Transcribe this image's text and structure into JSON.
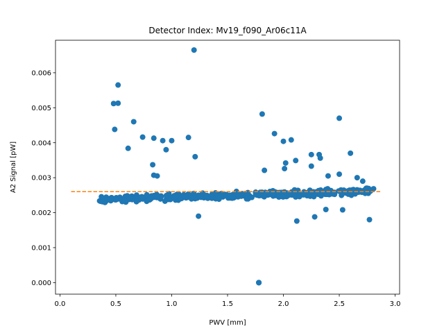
{
  "chart_data": {
    "type": "scatter",
    "title": "Detector Index: Mv19_f090_Ar06c11A",
    "xlabel": "PWV [mm]",
    "ylabel": "A2 Signal [pW]",
    "xlim": [
      -0.04,
      3.04
    ],
    "ylim": [
      -0.00033,
      0.00693
    ],
    "xticks": [
      0.0,
      0.5,
      1.0,
      1.5,
      2.0,
      2.5,
      3.0
    ],
    "xtick_labels": [
      "0.0",
      "0.5",
      "1.0",
      "1.5",
      "2.0",
      "2.5",
      "3.0"
    ],
    "yticks": [
      0.0,
      0.001,
      0.002,
      0.003,
      0.004,
      0.005,
      0.006
    ],
    "ytick_labels": [
      "0.000",
      "0.001",
      "0.002",
      "0.003",
      "0.004",
      "0.005",
      "0.006"
    ],
    "grid": false,
    "colors": {
      "points": "#1f77b4",
      "fit_line": "#ff7f0e"
    },
    "fit_line": {
      "x": [
        0.1,
        2.88
      ],
      "y": [
        0.0026,
        0.0026
      ],
      "style": "dashed"
    },
    "outliers": [
      [
        1.2,
        0.00665
      ],
      [
        0.52,
        0.00565
      ],
      [
        0.48,
        0.00512
      ],
      [
        0.52,
        0.00513
      ],
      [
        0.49,
        0.00438
      ],
      [
        0.66,
        0.0046
      ],
      [
        0.74,
        0.00416
      ],
      [
        0.84,
        0.00413
      ],
      [
        0.92,
        0.00406
      ],
      [
        1.0,
        0.00406
      ],
      [
        1.15,
        0.00415
      ],
      [
        1.21,
        0.0036
      ],
      [
        0.61,
        0.00384
      ],
      [
        0.95,
        0.0038
      ],
      [
        0.83,
        0.00337
      ],
      [
        0.84,
        0.00307
      ],
      [
        0.87,
        0.00305
      ],
      [
        1.24,
        0.0019
      ],
      [
        1.81,
        0.00482
      ],
      [
        1.83,
        0.00321
      ],
      [
        1.92,
        0.00426
      ],
      [
        2.0,
        0.00404
      ],
      [
        2.07,
        0.00408
      ],
      [
        2.02,
        0.00342
      ],
      [
        2.01,
        0.00326
      ],
      [
        2.11,
        0.00349
      ],
      [
        2.12,
        0.00176
      ],
      [
        2.25,
        0.00366
      ],
      [
        2.32,
        0.00366
      ],
      [
        2.33,
        0.00356
      ],
      [
        2.25,
        0.00333
      ],
      [
        2.28,
        0.00188
      ],
      [
        2.38,
        0.00209
      ],
      [
        2.5,
        0.0047
      ],
      [
        2.6,
        0.0037
      ],
      [
        2.53,
        0.00208
      ],
      [
        2.77,
        0.0018
      ],
      [
        2.66,
        0.003
      ],
      [
        2.71,
        0.0029
      ],
      [
        2.5,
        0.0031
      ],
      [
        2.4,
        0.00305
      ],
      [
        1.78,
        0.0
      ],
      [
        1.78,
        0.0
      ],
      [
        1.78,
        0.0
      ]
    ],
    "band": {
      "description": "dense cluster of points along the baseline trend",
      "x_range": [
        0.35,
        2.82
      ],
      "y_start": 0.00238,
      "y_end": 0.00262,
      "count": 420
    }
  }
}
